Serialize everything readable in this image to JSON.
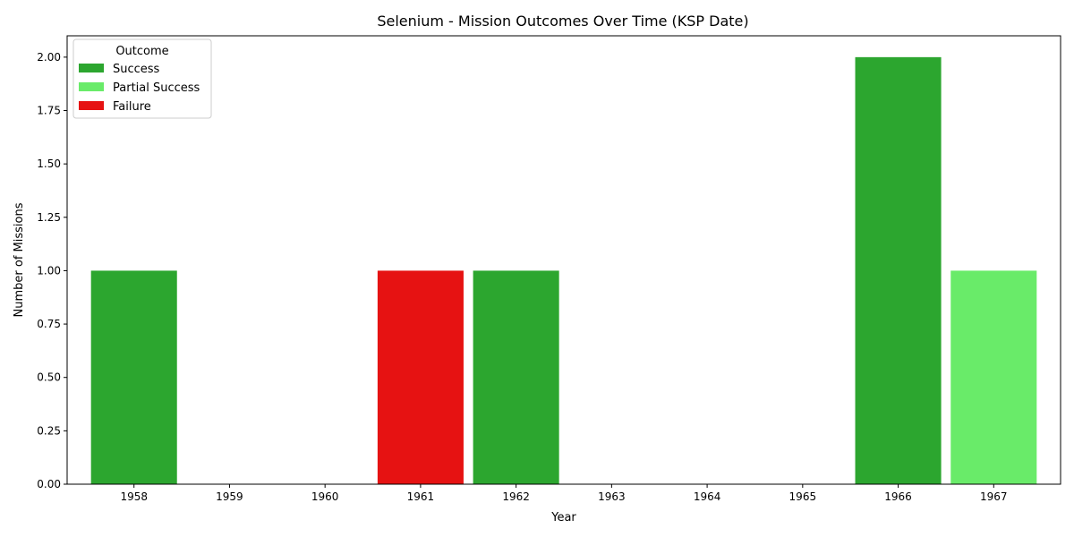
{
  "chart_data": {
    "type": "bar",
    "title": "Selenium - Mission Outcomes Over Time (KSP Date)",
    "xlabel": "Year",
    "ylabel": "Number of Missions",
    "categories": [
      "1958",
      "1959",
      "1960",
      "1961",
      "1962",
      "1963",
      "1964",
      "1965",
      "1966",
      "1967"
    ],
    "series": [
      {
        "name": "Success",
        "color": "#2ca62f",
        "values": [
          1,
          0,
          0,
          0,
          1,
          0,
          0,
          0,
          2,
          0
        ]
      },
      {
        "name": "Partial Success",
        "color": "#69eb69",
        "values": [
          0,
          0,
          0,
          0,
          0,
          0,
          0,
          0,
          0,
          1
        ]
      },
      {
        "name": "Failure",
        "color": "#e61212",
        "values": [
          0,
          0,
          0,
          1,
          0,
          0,
          0,
          0,
          0,
          0
        ]
      }
    ],
    "ylim": [
      0,
      2.1
    ],
    "yticks": [
      "0.00",
      "0.25",
      "0.50",
      "0.75",
      "1.00",
      "1.25",
      "1.50",
      "1.75",
      "2.00"
    ],
    "legend": {
      "title": "Outcome",
      "placement": "top-left"
    },
    "grid": false
  }
}
